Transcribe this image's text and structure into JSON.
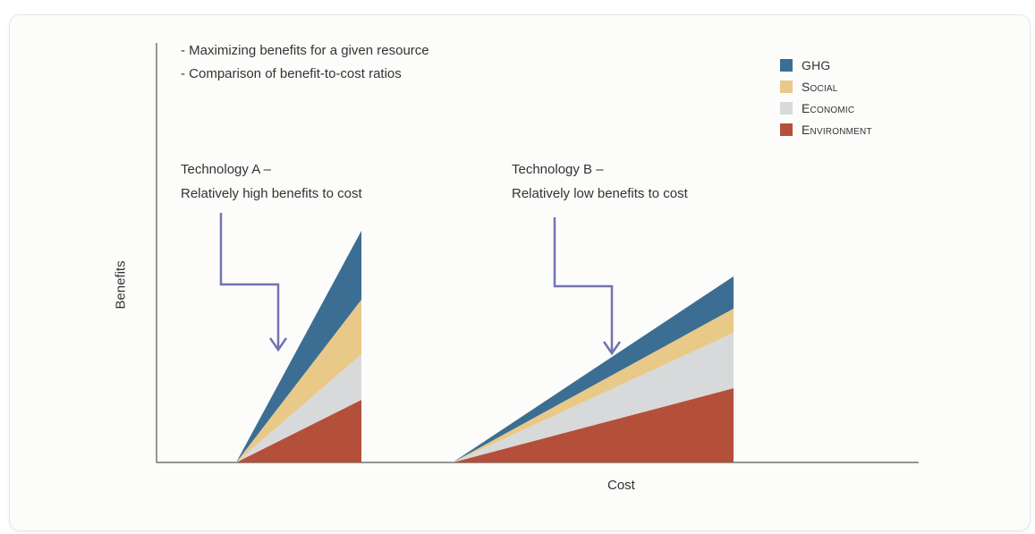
{
  "notes": {
    "line1": "- Maximizing benefits for a given resource",
    "line2": "- Comparison of benefit-to-cost ratios"
  },
  "technology_a": {
    "title": "Technology A –",
    "desc": "Relatively high benefits to cost"
  },
  "technology_b": {
    "title": "Technology B –",
    "desc": "Relatively low benefits to cost"
  },
  "axes": {
    "ylabel": "Benefits",
    "xlabel": "Cost"
  },
  "legend": [
    {
      "label": "GHG",
      "color": "#3b6e92"
    },
    {
      "label": "Social",
      "color": "#e9c987"
    },
    {
      "label": "Economic",
      "color": "#d8d9db"
    },
    {
      "label": "Environment",
      "color": "#b4503a"
    }
  ],
  "colors": {
    "ghg": "#3b6e92",
    "social": "#e9c987",
    "economic": "#d8d9db",
    "environment": "#b4503a",
    "arrow": "#7273b2",
    "axis": "#555555"
  }
}
